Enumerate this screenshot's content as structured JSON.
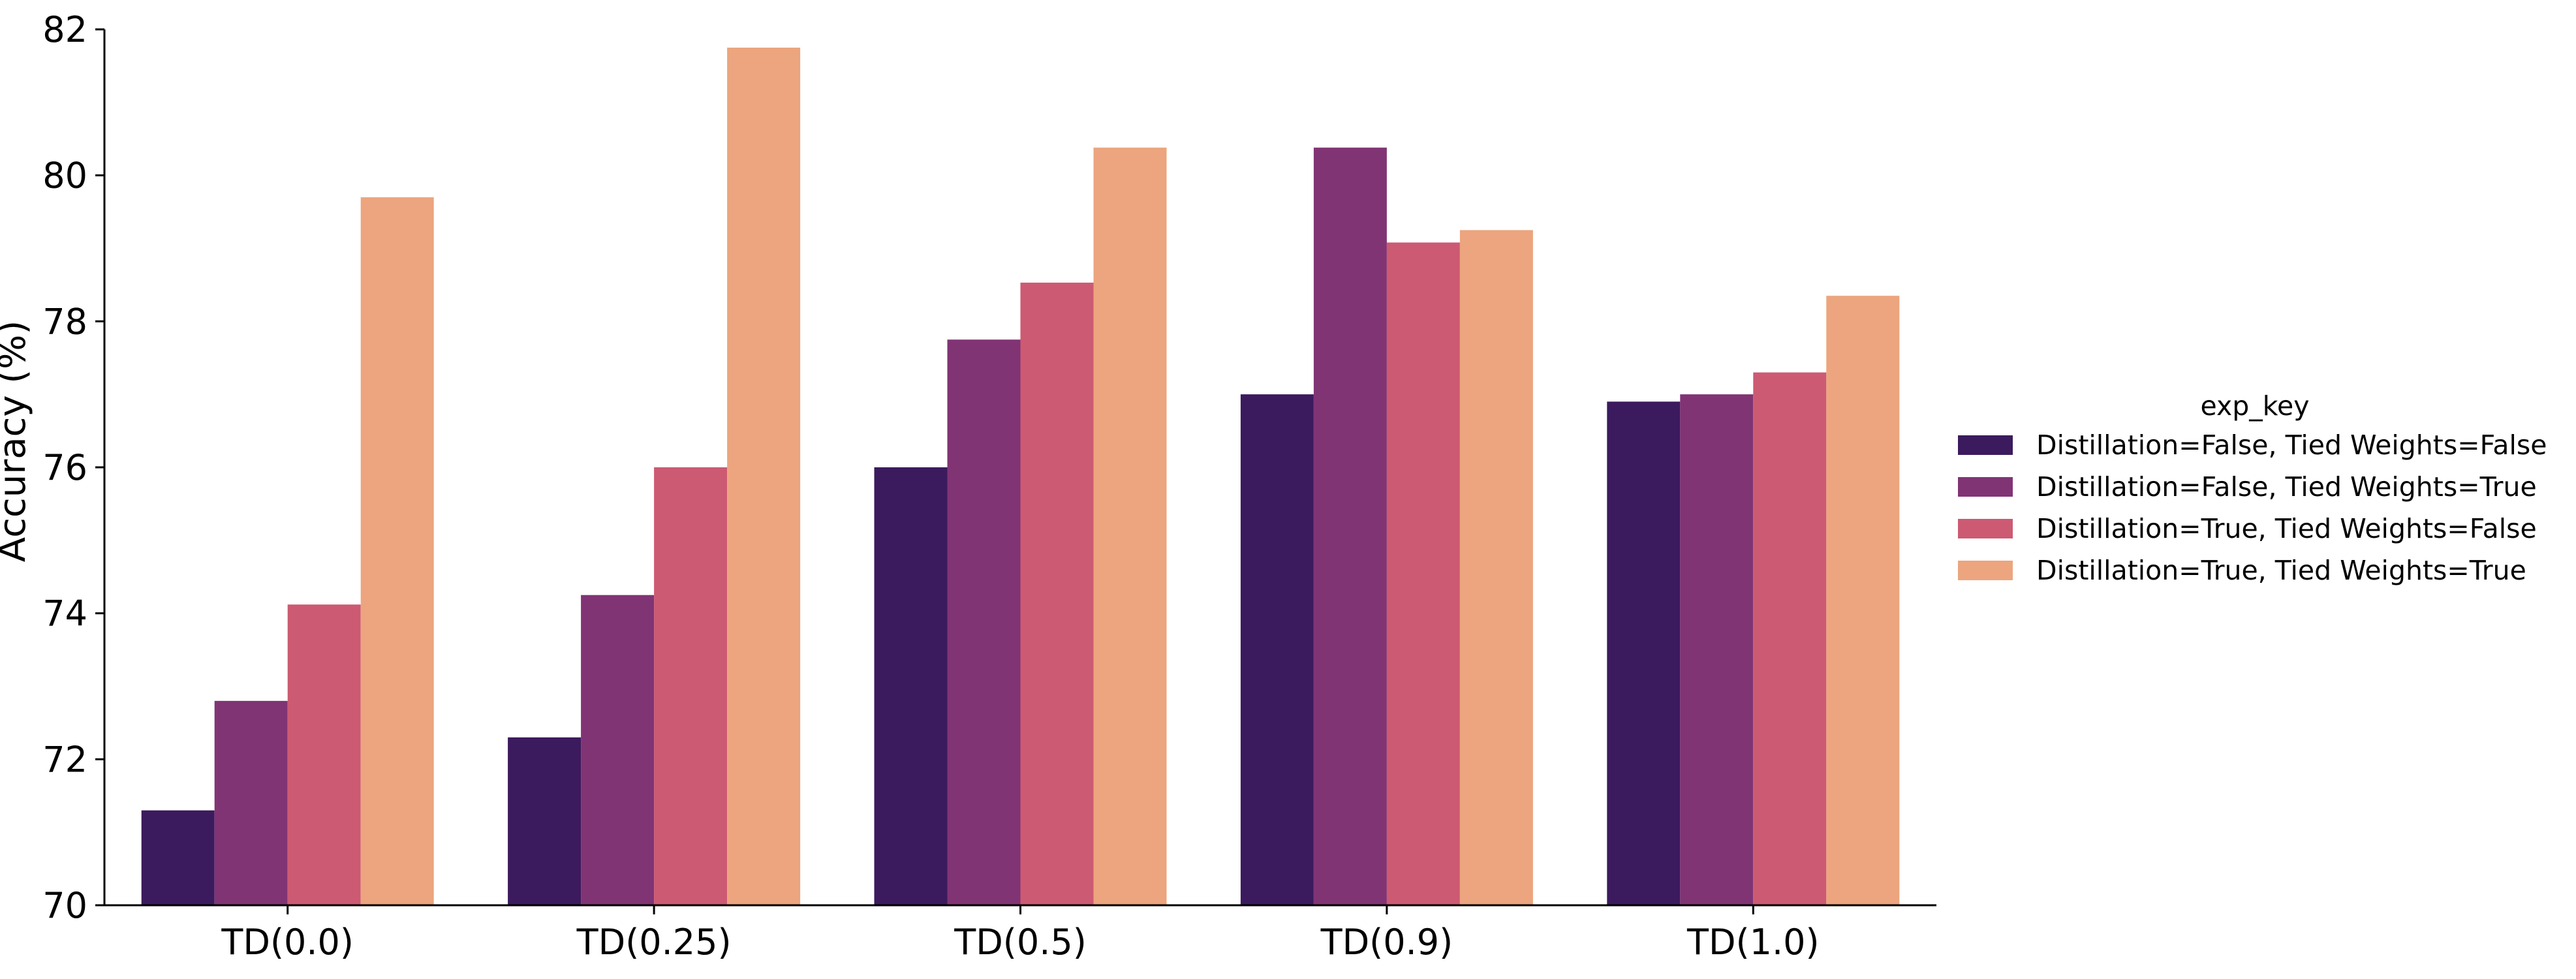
{
  "chart_data": {
    "type": "bar",
    "categories": [
      "TD(0.0)",
      "TD(0.25)",
      "TD(0.5)",
      "TD(0.9)",
      "TD(1.0)"
    ],
    "series": [
      {
        "name": "Distillation=False, Tied Weights=False",
        "color": "#3c1a5e",
        "values": [
          71.3,
          72.3,
          76.0,
          77.0,
          76.9
        ]
      },
      {
        "name": "Distillation=False, Tied Weights=True",
        "color": "#813474",
        "values": [
          72.8,
          74.25,
          77.75,
          80.38,
          77.0
        ]
      },
      {
        "name": "Distillation=True, Tied Weights=False",
        "color": "#cc5a72",
        "values": [
          74.12,
          76.0,
          78.53,
          79.08,
          77.3
        ]
      },
      {
        "name": "Distillation=True, Tied Weights=True",
        "color": "#eca57e",
        "values": [
          79.7,
          81.75,
          80.38,
          79.25,
          78.35
        ]
      }
    ],
    "ylabel": "Accuracy (%)",
    "xlabel": "",
    "ylim": [
      70,
      82
    ],
    "yticks": [
      70,
      72,
      74,
      76,
      78,
      80,
      82
    ],
    "legend_title": "exp_key",
    "legend_position": "right",
    "grid": false
  }
}
